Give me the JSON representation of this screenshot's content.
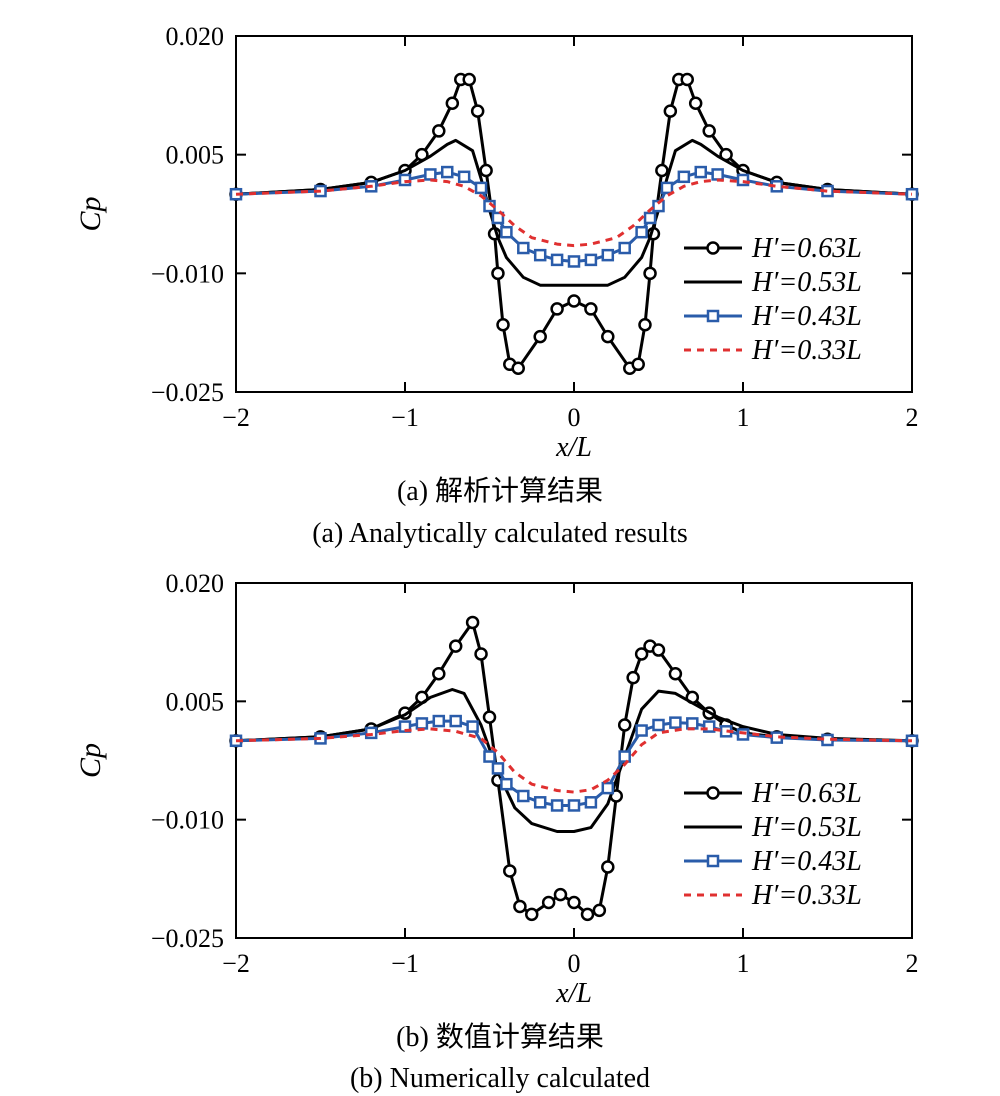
{
  "chart_data": [
    {
      "type": "line",
      "panel": "(a)",
      "caption_cn": "(a) 解析计算结果",
      "caption_en": "(a) Analytically calculated results",
      "xlabel": "x/L",
      "ylabel": "Cp",
      "xlim": [
        -2,
        2
      ],
      "ylim": [
        -0.025,
        0.02
      ],
      "xticks": [
        "−2",
        "−1",
        "0",
        "1",
        "2"
      ],
      "yticks": [
        "0.020",
        "0.005",
        "−0.010",
        "−0.025"
      ],
      "legend_position": "right",
      "series": [
        {
          "name": "H′=0.63L",
          "color": "#000000",
          "style": "solid",
          "marker": "circle",
          "x": [
            -2,
            -1.5,
            -1.2,
            -1.0,
            -0.9,
            -0.8,
            -0.72,
            -0.67,
            -0.62,
            -0.57,
            -0.52,
            -0.47,
            -0.45,
            -0.42,
            -0.38,
            -0.33,
            -0.2,
            -0.1,
            0,
            0.1,
            0.2,
            0.33,
            0.38,
            0.42,
            0.45,
            0.47,
            0.52,
            0.57,
            0.62,
            0.67,
            0.72,
            0.8,
            0.9,
            1.0,
            1.2,
            1.5,
            2
          ],
          "y": [
            0,
            0.0006,
            0.0015,
            0.003,
            0.005,
            0.008,
            0.0115,
            0.0145,
            0.0145,
            0.0105,
            0.003,
            -0.005,
            -0.01,
            -0.0165,
            -0.0215,
            -0.022,
            -0.018,
            -0.0145,
            -0.0135,
            -0.0145,
            -0.018,
            -0.022,
            -0.0215,
            -0.0165,
            -0.01,
            -0.005,
            0.003,
            0.0105,
            0.0145,
            0.0145,
            0.0115,
            0.008,
            0.005,
            0.003,
            0.0015,
            0.0006,
            0
          ]
        },
        {
          "name": "H′=0.53L",
          "color": "#000000",
          "style": "solid",
          "marker": "none",
          "x": [
            -2,
            -1.5,
            -1.2,
            -1.0,
            -0.85,
            -0.75,
            -0.7,
            -0.6,
            -0.55,
            -0.5,
            -0.45,
            -0.4,
            -0.3,
            -0.2,
            0,
            0.2,
            0.3,
            0.4,
            0.45,
            0.5,
            0.55,
            0.6,
            0.7,
            0.75,
            0.85,
            1.0,
            1.2,
            1.5,
            2
          ],
          "y": [
            0,
            0.0006,
            0.0015,
            0.003,
            0.0048,
            0.0063,
            0.0068,
            0.0055,
            0.002,
            -0.002,
            -0.0055,
            -0.008,
            -0.0105,
            -0.0115,
            -0.0115,
            -0.0115,
            -0.0105,
            -0.008,
            -0.0055,
            -0.002,
            0.002,
            0.0055,
            0.0068,
            0.0063,
            0.0048,
            0.003,
            0.0015,
            0.0006,
            0
          ]
        },
        {
          "name": "H′=0.43L",
          "color": "#2a5caa",
          "style": "solid",
          "marker": "square",
          "x": [
            -2,
            -1.5,
            -1.2,
            -1.0,
            -0.85,
            -0.75,
            -0.65,
            -0.55,
            -0.5,
            -0.45,
            -0.4,
            -0.3,
            -0.2,
            -0.1,
            0,
            0.1,
            0.2,
            0.3,
            0.4,
            0.45,
            0.5,
            0.55,
            0.65,
            0.75,
            0.85,
            1.0,
            1.2,
            1.5,
            2
          ],
          "y": [
            0,
            0.0004,
            0.001,
            0.0018,
            0.0025,
            0.0028,
            0.0022,
            0.0008,
            -0.0015,
            -0.003,
            -0.0048,
            -0.0068,
            -0.0077,
            -0.0083,
            -0.0085,
            -0.0083,
            -0.0077,
            -0.0068,
            -0.0048,
            -0.003,
            -0.0015,
            0.0008,
            0.0022,
            0.0028,
            0.0025,
            0.0018,
            0.001,
            0.0004,
            0
          ]
        },
        {
          "name": "H′=0.33L",
          "color": "#e03030",
          "style": "dashed",
          "marker": "none",
          "x": [
            -2,
            -1.5,
            -1.2,
            -1.0,
            -0.85,
            -0.75,
            -0.65,
            -0.55,
            -0.45,
            -0.35,
            -0.25,
            -0.1,
            0,
            0.1,
            0.25,
            0.35,
            0.45,
            0.55,
            0.65,
            0.75,
            0.85,
            1.0,
            1.2,
            1.5,
            2
          ],
          "y": [
            0,
            0.0004,
            0.001,
            0.0016,
            0.0018,
            0.0016,
            0.001,
            -0.0002,
            -0.002,
            -0.004,
            -0.0055,
            -0.0063,
            -0.0065,
            -0.0063,
            -0.0055,
            -0.004,
            -0.002,
            -0.0002,
            0.001,
            0.0016,
            0.0018,
            0.0016,
            0.001,
            0.0004,
            0
          ]
        }
      ]
    },
    {
      "type": "line",
      "panel": "(b)",
      "caption_cn": "(b) 数值计算结果",
      "caption_en": "(b) Numerically calculated",
      "xlabel": "x/L",
      "ylabel": "Cp",
      "xlim": [
        -2,
        2
      ],
      "ylim": [
        -0.025,
        0.02
      ],
      "xticks": [
        "−2",
        "−1",
        "0",
        "1",
        "2"
      ],
      "yticks": [
        "0.020",
        "0.005",
        "−0.010",
        "−0.025"
      ],
      "legend_position": "right",
      "series": [
        {
          "name": "H′=0.63L",
          "color": "#000000",
          "style": "solid",
          "marker": "circle",
          "x": [
            -2,
            -1.5,
            -1.2,
            -1.0,
            -0.9,
            -0.8,
            -0.7,
            -0.6,
            -0.55,
            -0.5,
            -0.45,
            -0.38,
            -0.32,
            -0.25,
            -0.15,
            -0.08,
            0,
            0.08,
            0.15,
            0.2,
            0.25,
            0.3,
            0.35,
            0.4,
            0.45,
            0.5,
            0.6,
            0.7,
            0.8,
            0.9,
            1.0,
            1.2,
            1.5,
            2
          ],
          "y": [
            0,
            0.0005,
            0.0015,
            0.0035,
            0.0055,
            0.0085,
            0.012,
            0.015,
            0.011,
            0.003,
            -0.005,
            -0.0165,
            -0.021,
            -0.022,
            -0.0205,
            -0.0195,
            -0.0205,
            -0.022,
            -0.0215,
            -0.016,
            -0.007,
            0.002,
            0.008,
            0.011,
            0.012,
            0.0115,
            0.0085,
            0.0055,
            0.0035,
            0.002,
            0.001,
            0.0005,
            0.0002,
            0
          ]
        },
        {
          "name": "H′=0.53L",
          "color": "#000000",
          "style": "solid",
          "marker": "none",
          "x": [
            -2,
            -1.5,
            -1.2,
            -1.0,
            -0.85,
            -0.72,
            -0.65,
            -0.55,
            -0.45,
            -0.35,
            -0.25,
            -0.1,
            0,
            0.1,
            0.2,
            0.3,
            0.4,
            0.5,
            0.6,
            0.7,
            0.85,
            1.0,
            1.2,
            1.5,
            2
          ],
          "y": [
            0,
            0.0005,
            0.0015,
            0.0033,
            0.0055,
            0.0065,
            0.006,
            0.002,
            -0.004,
            -0.0085,
            -0.0105,
            -0.0115,
            -0.0115,
            -0.011,
            -0.008,
            -0.002,
            0.004,
            0.0063,
            0.006,
            0.0048,
            0.003,
            0.0018,
            0.0008,
            0.0003,
            0
          ]
        },
        {
          "name": "H′=0.43L",
          "color": "#2a5caa",
          "style": "solid",
          "marker": "square",
          "x": [
            -2,
            -1.5,
            -1.2,
            -1.0,
            -0.9,
            -0.8,
            -0.7,
            -0.6,
            -0.5,
            -0.45,
            -0.4,
            -0.3,
            -0.2,
            -0.1,
            0,
            0.1,
            0.2,
            0.3,
            0.4,
            0.5,
            0.6,
            0.7,
            0.8,
            0.9,
            1.0,
            1.2,
            1.5,
            2
          ],
          "y": [
            0,
            0.0003,
            0.001,
            0.0018,
            0.0022,
            0.0025,
            0.0025,
            0.0018,
            -0.002,
            -0.0035,
            -0.0055,
            -0.007,
            -0.0078,
            -0.0082,
            -0.0082,
            -0.0078,
            -0.006,
            -0.002,
            0.0013,
            0.002,
            0.0023,
            0.0022,
            0.0018,
            0.0012,
            0.0008,
            0.0004,
            0.0001,
            0
          ]
        },
        {
          "name": "H′=0.33L",
          "color": "#e03030",
          "style": "dashed",
          "marker": "none",
          "x": [
            -2,
            -1.5,
            -1.2,
            -1.0,
            -0.85,
            -0.7,
            -0.55,
            -0.45,
            -0.35,
            -0.25,
            -0.1,
            0,
            0.1,
            0.2,
            0.3,
            0.4,
            0.5,
            0.65,
            0.8,
            1.0,
            1.2,
            1.5,
            2
          ],
          "y": [
            0,
            0.0003,
            0.0008,
            0.0013,
            0.0015,
            0.0012,
            0.0003,
            -0.0015,
            -0.004,
            -0.0055,
            -0.0063,
            -0.0065,
            -0.0062,
            -0.005,
            -0.003,
            -0.0005,
            0.001,
            0.0015,
            0.0015,
            0.001,
            0.0005,
            0.0002,
            0
          ]
        }
      ]
    }
  ]
}
